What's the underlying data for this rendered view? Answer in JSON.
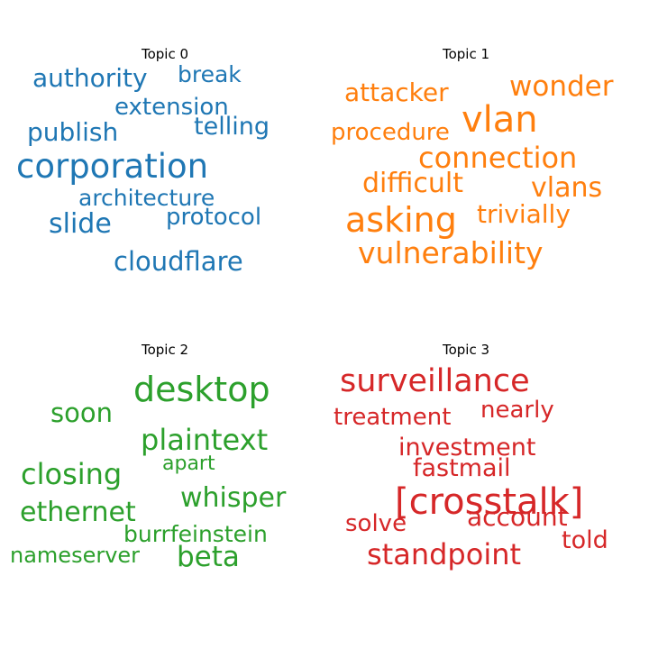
{
  "chart_data": [
    {
      "type": "wordcloud",
      "title": "Topic 0",
      "color": "#1f77b4",
      "words": [
        "corporation",
        "cloudflare",
        "slide",
        "architecture",
        "protocol",
        "publish",
        "extension",
        "telling",
        "authority",
        "break"
      ]
    },
    {
      "type": "wordcloud",
      "title": "Topic 1",
      "color": "#ff7f0e",
      "words": [
        "vlan",
        "asking",
        "vulnerability",
        "connection",
        "wonder",
        "difficult",
        "vlans",
        "attacker",
        "trivially",
        "procedure"
      ]
    },
    {
      "type": "wordcloud",
      "title": "Topic 2",
      "color": "#2ca02c",
      "words": [
        "desktop",
        "plaintext",
        "closing",
        "ethernet",
        "whisper",
        "soon",
        "beta",
        "burrfeinstein",
        "apart",
        "nameserver"
      ]
    },
    {
      "type": "wordcloud",
      "title": "Topic 3",
      "color": "#d62728",
      "words": [
        "[crosstalk]",
        "surveillance",
        "standpoint",
        "investment",
        "account",
        "treatment",
        "nearly",
        "fastmail",
        "solve",
        "told"
      ]
    }
  ]
}
